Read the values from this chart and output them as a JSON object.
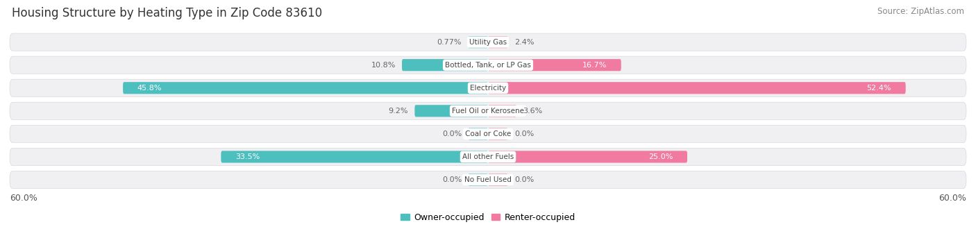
{
  "title": "Housing Structure by Heating Type in Zip Code 83610",
  "source": "Source: ZipAtlas.com",
  "categories": [
    "Utility Gas",
    "Bottled, Tank, or LP Gas",
    "Electricity",
    "Fuel Oil or Kerosene",
    "Coal or Coke",
    "All other Fuels",
    "No Fuel Used"
  ],
  "owner_values": [
    0.77,
    10.8,
    45.8,
    9.2,
    0.0,
    33.5,
    0.0
  ],
  "renter_values": [
    2.4,
    16.7,
    52.4,
    3.6,
    0.0,
    25.0,
    0.0
  ],
  "owner_color": "#4dbfbe",
  "renter_color": "#f07aa0",
  "owner_label": "Owner-occupied",
  "renter_label": "Renter-occupied",
  "axis_max": 60.0,
  "axis_label_left": "60.0%",
  "axis_label_right": "60.0%",
  "title_fontsize": 12,
  "source_fontsize": 8.5,
  "bar_height": 0.52,
  "row_bg_color": "#f0f0f2",
  "row_border_color": "#d8d8de",
  "label_color_inside": "#ffffff",
  "label_color_outside": "#666666",
  "center_label_bg": "#ffffff",
  "center_label_color": "#444444",
  "min_bar_display": 2.5,
  "zero_bar_size": 2.5
}
